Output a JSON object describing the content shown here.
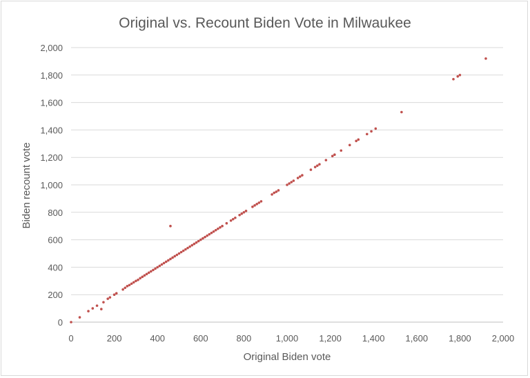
{
  "chart_data": {
    "type": "scatter",
    "title": "Original vs. Recount Biden Vote in Milwaukee",
    "xlabel": "Original Biden vote",
    "ylabel": "Biden recount vote",
    "xlim": [
      0,
      2000
    ],
    "ylim": [
      0,
      2000
    ],
    "x_ticks": [
      0,
      200,
      400,
      600,
      800,
      1000,
      1200,
      1400,
      1600,
      1800,
      2000
    ],
    "y_ticks": [
      0,
      200,
      400,
      600,
      800,
      1000,
      1200,
      1400,
      1600,
      1800,
      2000
    ],
    "x_tick_labels": [
      "0",
      "200",
      "400",
      "600",
      "800",
      "1,000",
      "1,200",
      "1,400",
      "1,600",
      "1,800",
      "2,000"
    ],
    "y_tick_labels": [
      "0",
      "200",
      "400",
      "600",
      "800",
      "1,000",
      "1,200",
      "1,400",
      "1,600",
      "1,800",
      "2,000"
    ],
    "grid": "horizontal",
    "legend": "none",
    "marker_color": "#c0504d",
    "points": [
      [
        0,
        0
      ],
      [
        40,
        35
      ],
      [
        80,
        80
      ],
      [
        100,
        100
      ],
      [
        120,
        120
      ],
      [
        140,
        95
      ],
      [
        150,
        145
      ],
      [
        170,
        170
      ],
      [
        180,
        180
      ],
      [
        200,
        200
      ],
      [
        210,
        210
      ],
      [
        240,
        238
      ],
      [
        250,
        250
      ],
      [
        260,
        262
      ],
      [
        270,
        270
      ],
      [
        280,
        280
      ],
      [
        290,
        290
      ],
      [
        300,
        300
      ],
      [
        310,
        308
      ],
      [
        320,
        320
      ],
      [
        330,
        330
      ],
      [
        340,
        340
      ],
      [
        350,
        350
      ],
      [
        360,
        360
      ],
      [
        370,
        370
      ],
      [
        380,
        380
      ],
      [
        390,
        390
      ],
      [
        400,
        400
      ],
      [
        410,
        410
      ],
      [
        420,
        420
      ],
      [
        430,
        430
      ],
      [
        440,
        440
      ],
      [
        450,
        450
      ],
      [
        460,
        460
      ],
      [
        470,
        470
      ],
      [
        480,
        480
      ],
      [
        490,
        490
      ],
      [
        500,
        500
      ],
      [
        510,
        510
      ],
      [
        520,
        520
      ],
      [
        530,
        530
      ],
      [
        540,
        540
      ],
      [
        550,
        550
      ],
      [
        560,
        560
      ],
      [
        570,
        570
      ],
      [
        580,
        580
      ],
      [
        590,
        590
      ],
      [
        600,
        600
      ],
      [
        610,
        610
      ],
      [
        620,
        620
      ],
      [
        630,
        630
      ],
      [
        640,
        640
      ],
      [
        650,
        650
      ],
      [
        660,
        660
      ],
      [
        670,
        670
      ],
      [
        680,
        680
      ],
      [
        690,
        690
      ],
      [
        700,
        700
      ],
      [
        720,
        720
      ],
      [
        740,
        740
      ],
      [
        750,
        750
      ],
      [
        760,
        760
      ],
      [
        780,
        780
      ],
      [
        790,
        790
      ],
      [
        800,
        800
      ],
      [
        810,
        810
      ],
      [
        840,
        840
      ],
      [
        850,
        850
      ],
      [
        860,
        860
      ],
      [
        870,
        870
      ],
      [
        880,
        880
      ],
      [
        930,
        930
      ],
      [
        940,
        942
      ],
      [
        950,
        950
      ],
      [
        960,
        960
      ],
      [
        1000,
        1000
      ],
      [
        1010,
        1010
      ],
      [
        1020,
        1020
      ],
      [
        1030,
        1030
      ],
      [
        1050,
        1050
      ],
      [
        1060,
        1060
      ],
      [
        1070,
        1070
      ],
      [
        1110,
        1110
      ],
      [
        1130,
        1130
      ],
      [
        1140,
        1140
      ],
      [
        1150,
        1150
      ],
      [
        1180,
        1180
      ],
      [
        1210,
        1210
      ],
      [
        1220,
        1220
      ],
      [
        1250,
        1250
      ],
      [
        1290,
        1290
      ],
      [
        1320,
        1320
      ],
      [
        1330,
        1330
      ],
      [
        1370,
        1370
      ],
      [
        1390,
        1390
      ],
      [
        1410,
        1410
      ],
      [
        1530,
        1530
      ],
      [
        1770,
        1770
      ],
      [
        1790,
        1790
      ],
      [
        1800,
        1800
      ],
      [
        1920,
        1920
      ],
      [
        460,
        700
      ]
    ]
  }
}
